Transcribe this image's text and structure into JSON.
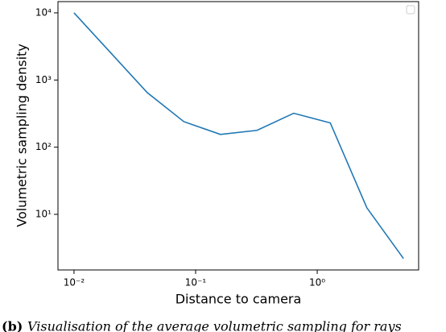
{
  "chart_data": {
    "type": "line",
    "xlabel": "Distance to camera",
    "ylabel": "Volumetric sampling density",
    "caption_label": "(b)",
    "caption": "Visualisation of the average volumetric sampling for rays",
    "x": [
      0.01,
      0.04,
      0.08,
      0.16,
      0.32,
      0.64,
      1.28,
      2.56,
      5.12
    ],
    "series": [
      {
        "color": "#1f77b4",
        "values": [
          10000,
          650,
          240,
          155,
          178,
          320,
          230,
          12.5,
          2.2
        ]
      }
    ],
    "xscale": "log",
    "yscale": "log",
    "xlim": [
      0.00738,
      6.82
    ],
    "ylim": [
      1.486,
      14700
    ],
    "xticks": [
      {
        "value": 0.01,
        "label": "10⁻²"
      },
      {
        "value": 0.1,
        "label": "10⁻¹"
      },
      {
        "value": 1,
        "label": "10⁰"
      }
    ],
    "yticks": [
      {
        "value": 10,
        "label": "10¹"
      },
      {
        "value": 100,
        "label": "10²"
      },
      {
        "value": 1000,
        "label": "10³"
      },
      {
        "value": 10000,
        "label": "10⁴"
      }
    ],
    "legend": "upper right"
  }
}
